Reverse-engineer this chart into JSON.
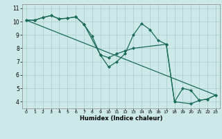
{
  "xlabel": "Humidex (Indice chaleur)",
  "background_color": "#cce8e8",
  "grid_color": "#b0d0d0",
  "line_color": "#1a6b5a",
  "xlim": [
    -0.5,
    23.5
  ],
  "ylim": [
    3.5,
    11.3
  ],
  "xticks": [
    0,
    1,
    2,
    3,
    4,
    5,
    6,
    7,
    8,
    9,
    10,
    11,
    12,
    13,
    14,
    15,
    16,
    17,
    18,
    19,
    20,
    21,
    22,
    23
  ],
  "yticks": [
    4,
    5,
    6,
    7,
    8,
    9,
    10,
    11
  ],
  "series1": {
    "x": [
      0,
      1,
      2,
      3,
      4,
      5,
      6,
      7,
      8,
      9,
      10,
      11,
      12,
      13,
      14,
      15,
      16,
      17,
      18,
      19,
      20,
      21,
      22,
      23
    ],
    "y": [
      10.1,
      10.1,
      10.3,
      10.45,
      10.2,
      10.25,
      10.35,
      9.8,
      8.9,
      7.5,
      6.6,
      7.0,
      7.6,
      9.0,
      9.85,
      9.4,
      8.6,
      8.3,
      4.0,
      5.0,
      4.85,
      4.1,
      4.2,
      4.5
    ]
  },
  "series2": {
    "x": [
      0,
      1,
      2,
      3,
      4,
      5,
      6,
      7,
      9,
      10,
      11,
      12,
      13,
      17,
      18,
      20,
      21,
      22,
      23
    ],
    "y": [
      10.1,
      10.1,
      10.3,
      10.45,
      10.2,
      10.25,
      10.35,
      9.8,
      7.5,
      7.3,
      7.6,
      7.8,
      8.0,
      8.3,
      4.0,
      3.85,
      4.1,
      4.2,
      4.5
    ]
  },
  "series3": {
    "x": [
      0,
      23
    ],
    "y": [
      10.1,
      4.5
    ]
  }
}
